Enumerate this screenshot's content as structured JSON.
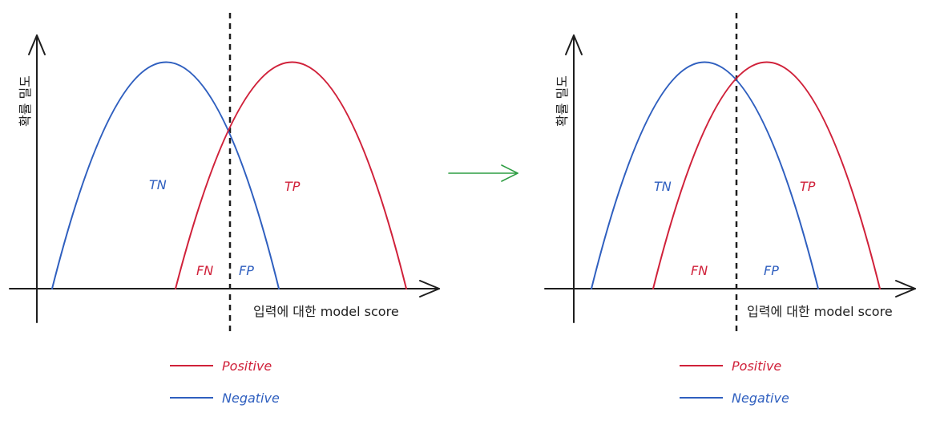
{
  "colors": {
    "positive": "#d0213a",
    "negative": "#2f5fbf",
    "axis": "#1e1e1e",
    "arrow": "#2f9e44"
  },
  "transition": {
    "icon": "right-arrow-icon"
  },
  "panels": [
    {
      "y_axis_label": "확률 밀도",
      "x_axis_label": "입력에 대한 model score",
      "regions": {
        "tn": "TN",
        "tp": "TP",
        "fn": "FN",
        "fp": "FP"
      },
      "legend": [
        {
          "label": "Positive",
          "series": "positive"
        },
        {
          "label": "Negative",
          "series": "negative"
        }
      ]
    },
    {
      "y_axis_label": "확률 밀도",
      "x_axis_label": "입력에 대한 model score",
      "regions": {
        "tn": "TN",
        "tp": "TP",
        "fn": "FN",
        "fp": "FP"
      },
      "legend": [
        {
          "label": "Positive",
          "series": "positive"
        },
        {
          "label": "Negative",
          "series": "negative"
        }
      ]
    }
  ]
}
